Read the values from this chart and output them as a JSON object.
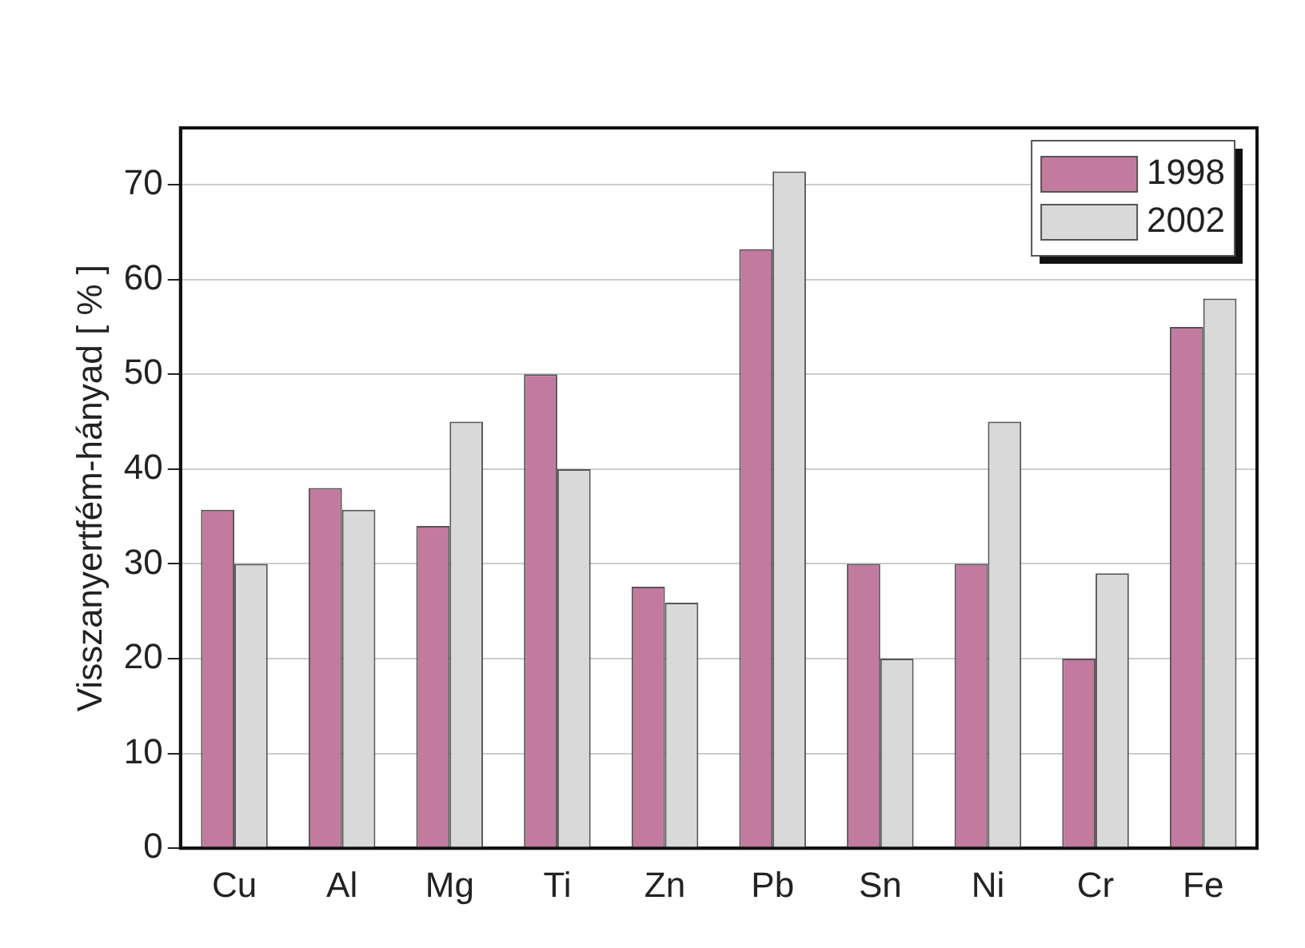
{
  "chart_data": {
    "type": "bar",
    "ylabel": "Visszanyertfém-hányad [ % ]",
    "categories": [
      "Cu",
      "Al",
      "Mg",
      "Ti",
      "Zn",
      "Pb",
      "Sn",
      "Ni",
      "Cr",
      "Fe"
    ],
    "series": [
      {
        "name": "1998",
        "color": "#c27a9e",
        "values": [
          35.7,
          38,
          34,
          50,
          27.6,
          63.2,
          30,
          30,
          20,
          55
        ]
      },
      {
        "name": "2002",
        "color": "#d9d9d9",
        "values": [
          30,
          35.7,
          45,
          40,
          25.9,
          71.4,
          20,
          45,
          29,
          58
        ]
      }
    ],
    "ylim": [
      0,
      76
    ],
    "yticks": [
      0,
      10,
      20,
      30,
      40,
      50,
      60,
      70
    ],
    "grid": "y",
    "legend": "top right"
  }
}
